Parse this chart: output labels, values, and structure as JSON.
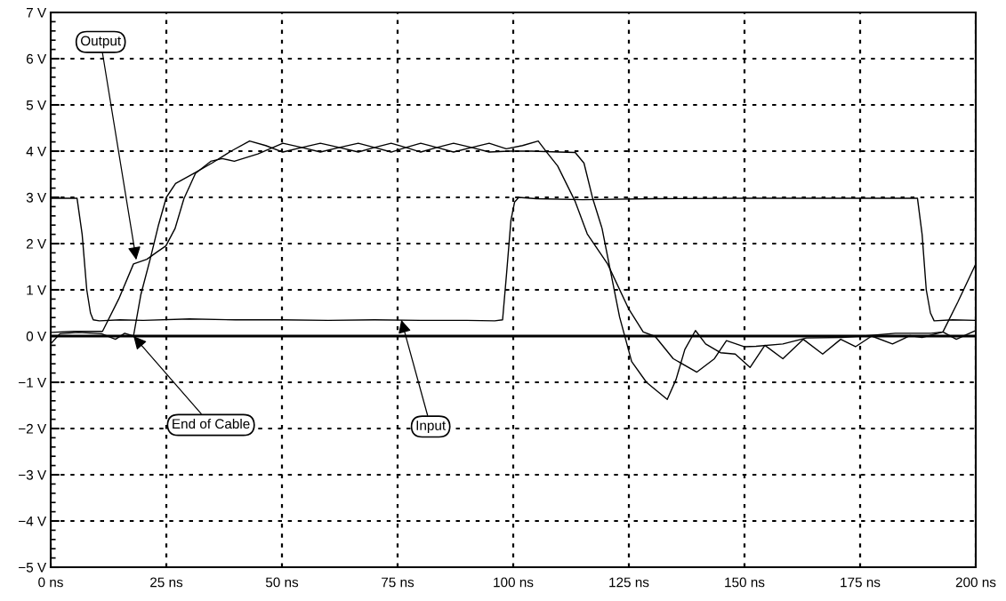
{
  "chart_data": {
    "type": "line",
    "xlim": [
      0,
      200
    ],
    "ylim": [
      -5,
      7
    ],
    "xticks": [
      {
        "value": 0,
        "label": "0 ns"
      },
      {
        "value": 25,
        "label": "25 ns"
      },
      {
        "value": 50,
        "label": "50 ns"
      },
      {
        "value": 75,
        "label": "75 ns"
      },
      {
        "value": 100,
        "label": "100 ns"
      },
      {
        "value": 125,
        "label": "125 ns"
      },
      {
        "value": 150,
        "label": "150 ns"
      },
      {
        "value": 175,
        "label": "175 ns"
      },
      {
        "value": 200,
        "label": "200 ns"
      }
    ],
    "yticks": [
      {
        "value": -5,
        "label": "−5 V"
      },
      {
        "value": -4,
        "label": "−4 V"
      },
      {
        "value": -3,
        "label": "−3 V"
      },
      {
        "value": -2,
        "label": "−2 V"
      },
      {
        "value": -1,
        "label": "−1 V"
      },
      {
        "value": 0,
        "label": "0 V"
      },
      {
        "value": 1,
        "label": "1 V"
      },
      {
        "value": 2,
        "label": "2 V"
      },
      {
        "value": 3,
        "label": "3 V"
      },
      {
        "value": 4,
        "label": "4 V"
      },
      {
        "value": 5,
        "label": "5 V"
      },
      {
        "value": 6,
        "label": "6 V"
      },
      {
        "value": 7,
        "label": "7 V"
      }
    ],
    "grid": true,
    "legend": false,
    "line_style": "solid",
    "marker": "none",
    "ref_lines": [
      {
        "axis": "y",
        "value": 0,
        "color": "#000000"
      }
    ],
    "series": [
      {
        "color": "#000000",
        "x": [
          0,
          5.7,
          6.8,
          7.8,
          8.6,
          9.2,
          10.5,
          15,
          20,
          30,
          40,
          50,
          60,
          70,
          80,
          90,
          96,
          97.7,
          98.6,
          99.5,
          100.3,
          101.2,
          105,
          115,
          130,
          150,
          170,
          185,
          187.4,
          188.4,
          189.3,
          190.2,
          191,
          195,
          200
        ],
        "values": [
          2.98,
          2.98,
          2.2,
          1.0,
          0.5,
          0.35,
          0.33,
          0.35,
          0.34,
          0.37,
          0.35,
          0.35,
          0.34,
          0.35,
          0.34,
          0.34,
          0.33,
          0.35,
          1.4,
          2.5,
          2.9,
          3.0,
          2.97,
          2.95,
          2.97,
          2.98,
          2.98,
          2.98,
          2.98,
          2.2,
          1.0,
          0.5,
          0.33,
          0.35,
          0.34
        ]
      },
      {
        "color": "#000000",
        "x": [
          0,
          5,
          11.2,
          14.7,
          17.9,
          20.8,
          23.0,
          24.9,
          26.9,
          28.8,
          31.3,
          34.6,
          37.1,
          39.7,
          44.8,
          50.2,
          54.3,
          58.3,
          62.4,
          66.5,
          70,
          73.6,
          76.8,
          80,
          83.5,
          87.1,
          91,
          94.8,
          98.5,
          102,
          105.4,
          107.3,
          109.6,
          113.4,
          116.0,
          120.4,
          124.9,
          128.1,
          130.7,
          134.6,
          139.7,
          143.5,
          146.1,
          149.9,
          152.5,
          158.3,
          163.4,
          171.1,
          176.9,
          182.6,
          190.3,
          192.9,
          196.1,
          200
        ],
        "values": [
          0.08,
          0.1,
          0.1,
          0.8,
          1.56,
          1.66,
          1.82,
          1.95,
          2.33,
          2.97,
          3.52,
          3.78,
          3.84,
          3.78,
          3.94,
          4.17,
          4.08,
          3.98,
          4.08,
          4.17,
          4.08,
          3.98,
          4.08,
          4.17,
          4.08,
          3.98,
          4.08,
          4.17,
          4.05,
          4.12,
          4.22,
          3.97,
          3.68,
          2.91,
          2.21,
          1.56,
          0.6,
          0.09,
          -0.01,
          -0.49,
          -0.78,
          -0.49,
          -0.1,
          -0.23,
          -0.22,
          -0.17,
          -0.04,
          -0.03,
          0.01,
          0.06,
          0.06,
          0.09,
          0.73,
          1.56
        ]
      },
      {
        "color": "#000000",
        "x": [
          0,
          2,
          6,
          11,
          14,
          16,
          17.9,
          19.5,
          21.5,
          23.3,
          25,
          27,
          31,
          35,
          39,
          43,
          46.5,
          50.2,
          54.3,
          58.3,
          62.4,
          66.5,
          70,
          73.6,
          76.8,
          80,
          83.5,
          87.1,
          91,
          94.8,
          99,
          104,
          110,
          113.4,
          115.3,
          117.2,
          119.2,
          121.1,
          123.0,
          125.6,
          128.8,
          133.3,
          135.2,
          137.1,
          139.4,
          141.6,
          144.8,
          148.0,
          151.2,
          154.4,
          158.3,
          162.7,
          166.9,
          170.8,
          174.0,
          177.5,
          182.0,
          185.8,
          188.4,
          192.9,
          195.8,
          198.0,
          200
        ],
        "values": [
          -0.17,
          0.05,
          0.08,
          0.05,
          -0.07,
          0.06,
          0.0,
          0.9,
          1.66,
          2.4,
          3.0,
          3.3,
          3.52,
          3.75,
          4.0,
          4.22,
          4.12,
          3.98,
          4.08,
          4.17,
          4.08,
          3.98,
          4.08,
          4.17,
          4.08,
          3.98,
          4.08,
          4.17,
          4.08,
          3.98,
          4.0,
          4.0,
          3.98,
          3.97,
          3.74,
          2.97,
          2.33,
          1.37,
          0.41,
          -0.55,
          -1.0,
          -1.37,
          -0.94,
          -0.29,
          0.12,
          -0.17,
          -0.36,
          -0.39,
          -0.68,
          -0.2,
          -0.49,
          -0.07,
          -0.39,
          -0.07,
          -0.23,
          0.0,
          -0.17,
          0.01,
          -0.03,
          0.09,
          -0.07,
          0.03,
          0.12
        ]
      }
    ],
    "annotations": [
      {
        "text": "Output",
        "x": 18.5,
        "y": 1.65
      },
      {
        "text": "End of Cable",
        "x": 17.9,
        "y": 0
      },
      {
        "text": "Input",
        "x": 75.8,
        "y": 0.35
      }
    ]
  }
}
